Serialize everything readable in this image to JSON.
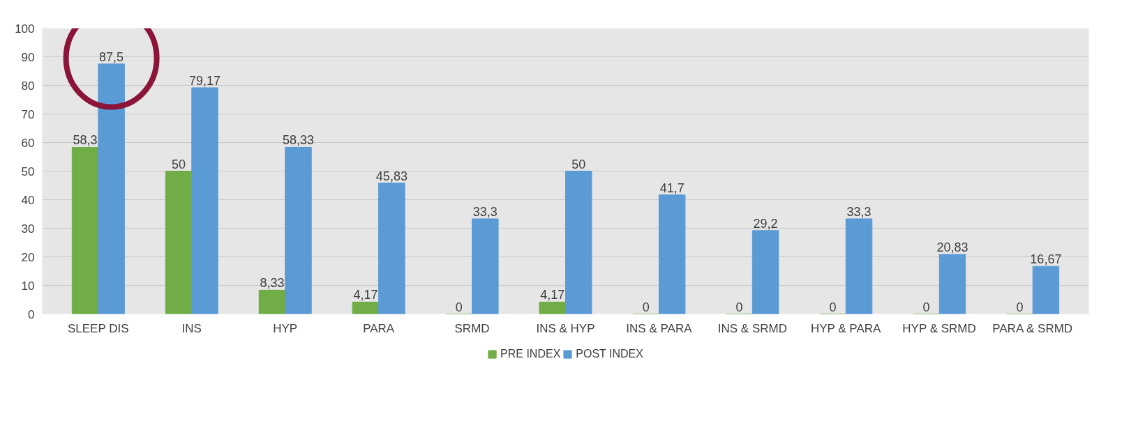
{
  "chart_data": {
    "type": "bar",
    "categories": [
      "SLEEP DIS",
      "INS",
      "HYP",
      "PARA",
      "SRMD",
      "INS & HYP",
      "INS & PARA",
      "INS & SRMD",
      "HYP & PARA",
      "HYP & SRMD",
      "PARA & SRMD"
    ],
    "series": [
      {
        "name": "PRE INDEX",
        "color": "#70ad47",
        "values": [
          58.3,
          50,
          8.33,
          4.17,
          0,
          4.17,
          0,
          0,
          0,
          0,
          0
        ],
        "value_labels": [
          "58,3",
          "50",
          "8,33",
          "4,17",
          "0",
          "4,17",
          "0",
          "0",
          "0",
          "0",
          "0"
        ]
      },
      {
        "name": "POST INDEX",
        "color": "#5b9bd5",
        "values": [
          87.5,
          79.17,
          58.33,
          45.83,
          33.3,
          50,
          41.7,
          29.2,
          33.3,
          20.83,
          16.67
        ],
        "value_labels": [
          "87,5",
          "79,17",
          "58,33",
          "45,83",
          "33,3",
          "50",
          "41,7",
          "29,2",
          "33,3",
          "20,83",
          "16,67"
        ]
      }
    ],
    "ylim": [
      0,
      100
    ],
    "yticks": [
      0,
      10,
      20,
      30,
      40,
      50,
      60,
      70,
      80,
      90,
      100
    ],
    "grid": "y",
    "legend": "bottom"
  }
}
